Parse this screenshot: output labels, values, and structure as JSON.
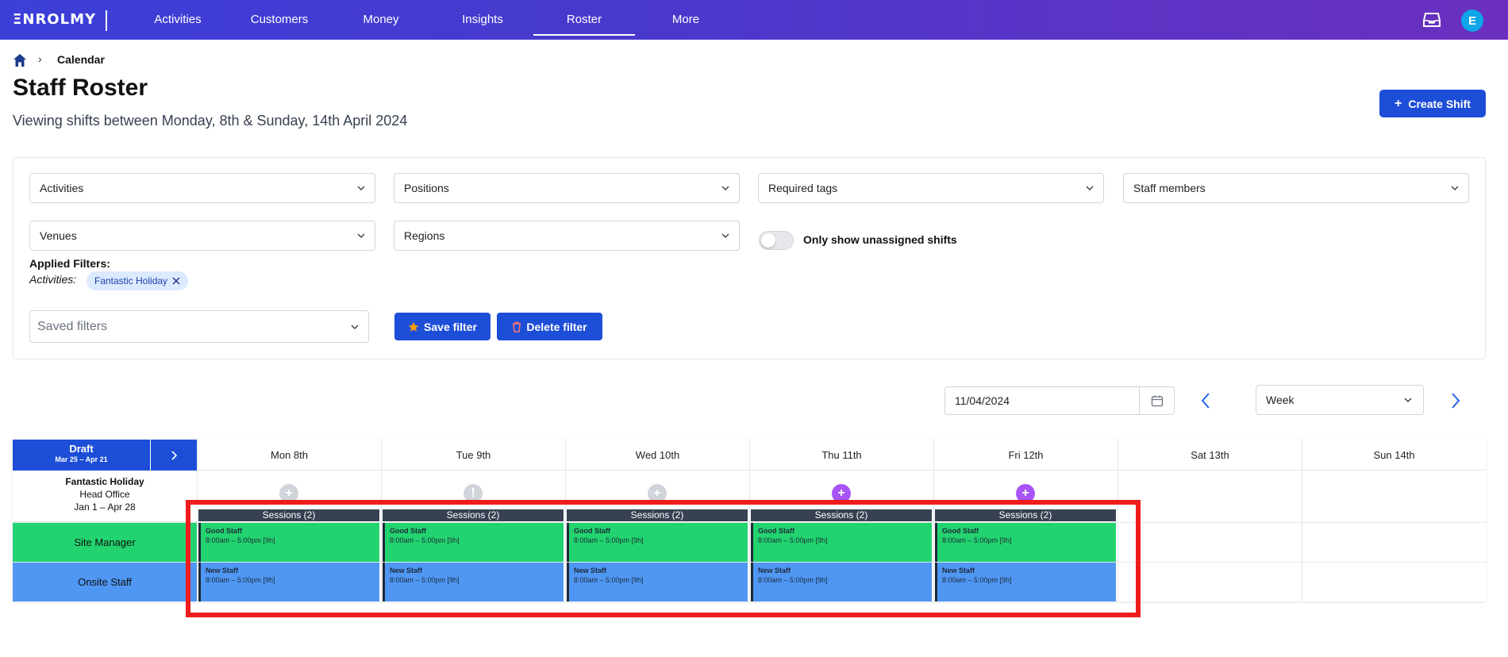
{
  "app": {
    "logo": "ΞNROLMY",
    "nav": [
      {
        "label": "Activities"
      },
      {
        "label": "Customers"
      },
      {
        "label": "Money"
      },
      {
        "label": "Insights"
      },
      {
        "label": "Roster",
        "active": true
      },
      {
        "label": "More"
      }
    ],
    "avatar_initial": "E"
  },
  "breadcrumb": {
    "current": "Calendar"
  },
  "page": {
    "title": "Staff Roster",
    "subtitle": "Viewing shifts between Monday, 8th & Sunday, 14th April 2024",
    "create_button": "Create Shift"
  },
  "filters": {
    "activities": "Activities",
    "positions": "Positions",
    "required_tags": "Required tags",
    "staff_members": "Staff members",
    "venues": "Venues",
    "regions": "Regions",
    "toggle_label": "Only show unassigned shifts",
    "toggle_on": false,
    "applied_label": "Applied Filters:",
    "applied_activities_label": "Activities:",
    "applied_chip": "Fantastic Holiday",
    "saved_filters_placeholder": "Saved filters",
    "save_button": "Save filter",
    "delete_button": "Delete filter"
  },
  "calendar": {
    "date": "11/04/2024",
    "view": "Week",
    "draft_title": "Draft",
    "draft_range": "Mar 25 – Apr 21",
    "days": [
      "Mon 8th",
      "Tue 9th",
      "Wed 10th",
      "Thu 11th",
      "Fri 12th",
      "Sat 13th",
      "Sun 14th"
    ],
    "activity": {
      "name": "Fantastic Holiday",
      "venue": "Head Office",
      "range": "Jan 1 – Apr 28"
    },
    "sessions_label": "Sessions (2)",
    "roles": [
      {
        "name": "Site Manager",
        "color": "#22d36f",
        "shift_name": "Good Staff",
        "shift_time": "8:00am – 5:00pm [9h]"
      },
      {
        "name": "Onsite Staff",
        "color": "#4f97f3",
        "shift_name": "New Staff",
        "shift_time": "8:00am – 5:00pm [9h]"
      }
    ],
    "add_button_colors": [
      "#d1d5db",
      "#d1d5db",
      "#d1d5db",
      "#a855f7",
      "#a855f7"
    ]
  }
}
